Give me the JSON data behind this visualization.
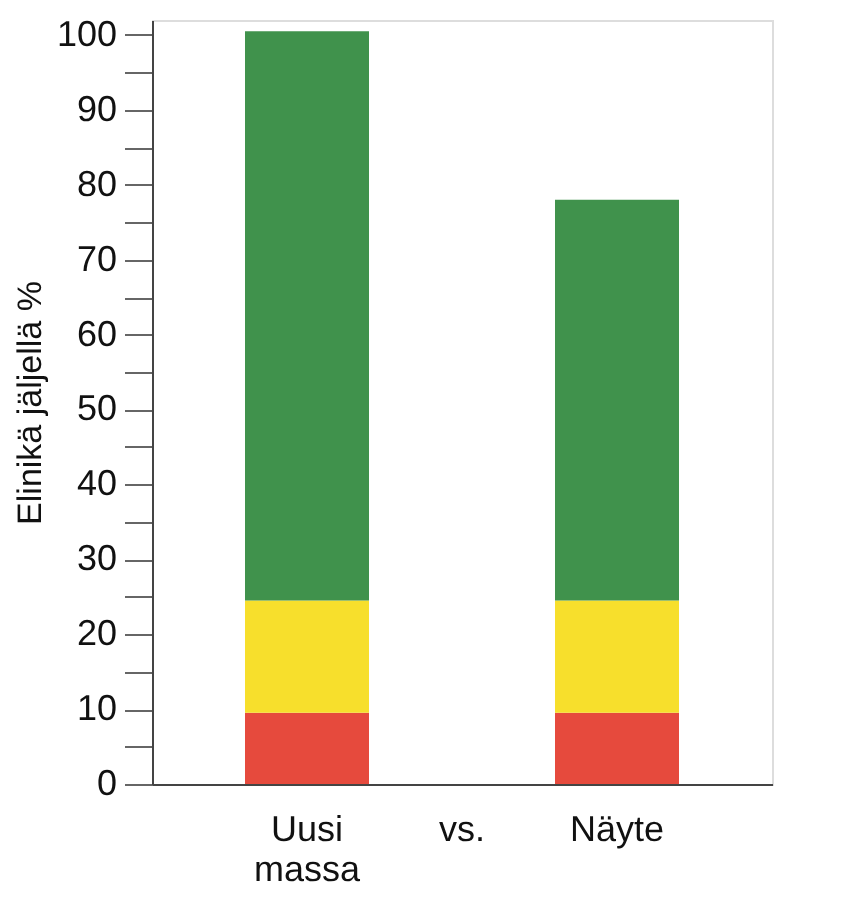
{
  "chart_data": {
    "type": "bar",
    "stacked": true,
    "ylabel": "Elinikä jäljellä %",
    "categories": [
      "Uusi massa",
      "vs.",
      "Näyte"
    ],
    "series": [
      {
        "color": "#e64a3d",
        "values": [
          9.5,
          null,
          9.5
        ]
      },
      {
        "color": "#f7df2c",
        "values": [
          15,
          null,
          15
        ]
      },
      {
        "color": "#40924c",
        "values": [
          76,
          null,
          53.5
        ]
      }
    ],
    "ylim": [
      0,
      102
    ],
    "yticks": [
      0,
      {
        "value": 5,
        "label": null
      },
      10,
      {
        "value": 15,
        "label": null
      },
      20,
      {
        "value": 25,
        "label": null
      },
      30,
      {
        "value": 35,
        "label": null
      },
      40,
      {
        "value": 45,
        "label": null
      },
      50,
      {
        "value": 55,
        "label": null
      },
      60,
      {
        "value": 65,
        "label": null
      },
      70,
      {
        "value": 75,
        "label": null
      },
      80,
      {
        "value": 85,
        "label": null
      },
      90,
      {
        "value": 95,
        "label": null
      },
      100
    ],
    "grid": false,
    "legend": false
  }
}
